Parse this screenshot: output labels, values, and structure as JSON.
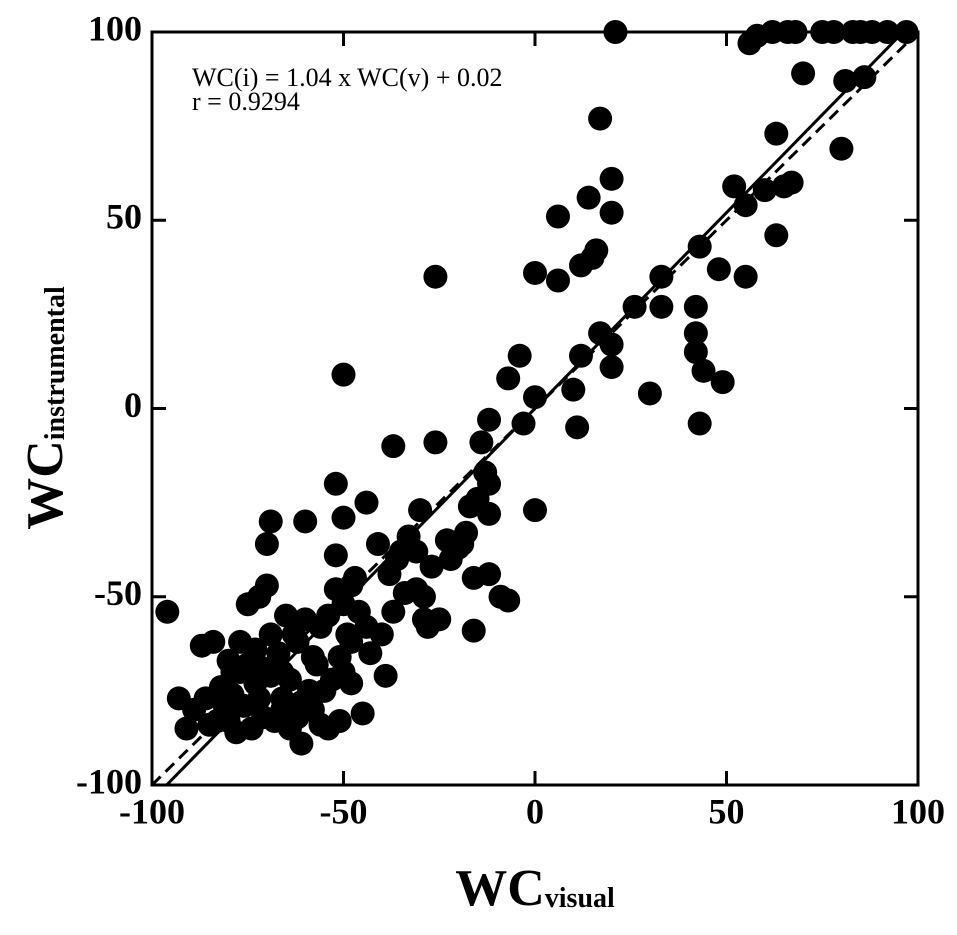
{
  "chart_data": {
    "type": "scatter",
    "xlabel": {
      "main": "WC",
      "sub": "visual"
    },
    "ylabel": {
      "main": "WC",
      "sub": "instrumental"
    },
    "annotations": [
      "WC(i) = 1.04 x WC(v) + 0.02",
      "r = 0.9294"
    ],
    "fit": {
      "slope": 1.04,
      "intercept": 0.02
    },
    "identity_line": true,
    "color": "#000000",
    "xlim": [
      -100,
      100
    ],
    "ylim": [
      -100,
      100
    ],
    "xticks": [
      -100,
      -50,
      0,
      50,
      100
    ],
    "yticks": [
      -100,
      -50,
      0,
      50,
      100
    ],
    "x": [
      21,
      56,
      58,
      62,
      66,
      68,
      75,
      78,
      83,
      85,
      88,
      92,
      97,
      70,
      81,
      86,
      80,
      63,
      65,
      67,
      60,
      52,
      55,
      63,
      55,
      48,
      43,
      42,
      42,
      42,
      44,
      43,
      49,
      33,
      33,
      26,
      30,
      17,
      20,
      20,
      14,
      6,
      16,
      15,
      12,
      6,
      0,
      -26,
      17,
      20,
      12,
      20,
      10,
      11,
      0,
      -3,
      -4,
      -7,
      -12,
      -14,
      -13,
      -15,
      -12,
      -12,
      -7,
      0,
      -17,
      -18,
      -20,
      -22,
      -16,
      -16,
      -26,
      -37,
      -50,
      -52,
      -50,
      -44,
      -41,
      -35,
      -33,
      -30,
      -31,
      -29,
      -28,
      -25,
      -29,
      -37,
      -38,
      -39,
      -43,
      -45,
      -48,
      -51,
      -56,
      -59,
      -61,
      -62,
      -64,
      -66,
      -69,
      -70,
      -60,
      -70,
      -72,
      -75,
      -69,
      -73,
      -77,
      -79,
      -80,
      -82,
      -84,
      -87,
      -86,
      -89,
      -91,
      -93,
      -96,
      -85,
      -80,
      -76,
      -74,
      -71,
      -68,
      -66,
      -64,
      -61,
      -58,
      -56,
      -54,
      -52,
      -50,
      -49,
      -47,
      -46,
      -44,
      -51,
      -53,
      -55,
      -57,
      -60,
      -63,
      -65,
      -67,
      -69,
      -71,
      -73,
      -75,
      -77,
      -79,
      -81,
      -83,
      -78,
      -72,
      -66,
      -62,
      -58,
      -54,
      -50,
      -48,
      -52,
      -48,
      -40,
      -36,
      -34,
      -31,
      -27,
      -23,
      -19,
      -12,
      -9
    ],
    "values": [
      100,
      97,
      99,
      100,
      100,
      100,
      100,
      100,
      100,
      100,
      100,
      100,
      100,
      89,
      87,
      88,
      69,
      73,
      59,
      60,
      58,
      59,
      54,
      46,
      35,
      37,
      43,
      27,
      20,
      15,
      10,
      -4,
      7,
      35,
      27,
      27,
      4,
      77,
      61,
      52,
      56,
      51,
      42,
      40,
      38,
      34,
      36,
      35,
      20,
      17,
      14,
      11,
      5,
      -5,
      3,
      -4,
      14,
      8,
      -3,
      -9,
      -17,
      -24,
      -28,
      -44,
      -51,
      -27,
      -26,
      -33,
      -37,
      -40,
      -45,
      -59,
      -9,
      -10,
      9,
      -20,
      -29,
      -25,
      -36,
      -38,
      -34,
      -27,
      -38,
      -50,
      -58,
      -56,
      -56,
      -54,
      -44,
      -71,
      -65,
      -81,
      -73,
      -83,
      -84,
      -75,
      -89,
      -62,
      -85,
      -77,
      -30,
      -36,
      -30,
      -47,
      -50,
      -52,
      -60,
      -64,
      -62,
      -70,
      -67,
      -74,
      -62,
      -63,
      -77,
      -80,
      -85,
      -77,
      -54,
      -84,
      -83,
      -79,
      -85,
      -82,
      -83,
      -70,
      -72,
      -78,
      -66,
      -58,
      -55,
      -48,
      -52,
      -60,
      -45,
      -54,
      -58,
      -66,
      -72,
      -75,
      -68,
      -56,
      -60,
      -55,
      -65,
      -71,
      -69,
      -73,
      -68,
      -70,
      -76,
      -79,
      -83,
      -86,
      -77,
      -80,
      -82,
      -80,
      -85,
      -70,
      -62,
      -39,
      -47,
      -60,
      -40,
      -49,
      -48,
      -42,
      -35,
      -36,
      -20,
      -50
    ]
  }
}
